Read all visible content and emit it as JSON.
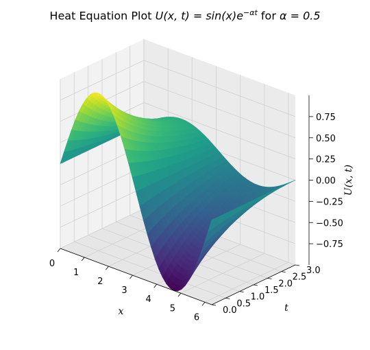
{
  "title": {
    "prefix": "Heat Equation Plot ",
    "func": "U(x, t) = sin(x)e",
    "exponent": "−αt",
    "mid": " for ",
    "alpha_label": "α = 0.5"
  },
  "chart_data": {
    "type": "surface",
    "function": "sin(x) * exp(-alpha * t)",
    "alpha": 0.5,
    "x_range": [
      0,
      6.283
    ],
    "t_range": [
      0,
      3
    ],
    "z_range": [
      -1,
      1
    ],
    "x_ticks": [
      "0",
      "1",
      "2",
      "3",
      "4",
      "5",
      "6"
    ],
    "t_ticks": [
      "0.0",
      "0.5",
      "1.0",
      "1.5",
      "2.0",
      "2.5",
      "3.0"
    ],
    "z_ticks": [
      "−0.75",
      "−0.50",
      "−0.25",
      "0.00",
      "0.25",
      "0.50",
      "0.75"
    ],
    "xlabel": "x",
    "ylabel": "t",
    "zlabel": "U(x, t)",
    "colormap": "viridis",
    "grid": true
  }
}
